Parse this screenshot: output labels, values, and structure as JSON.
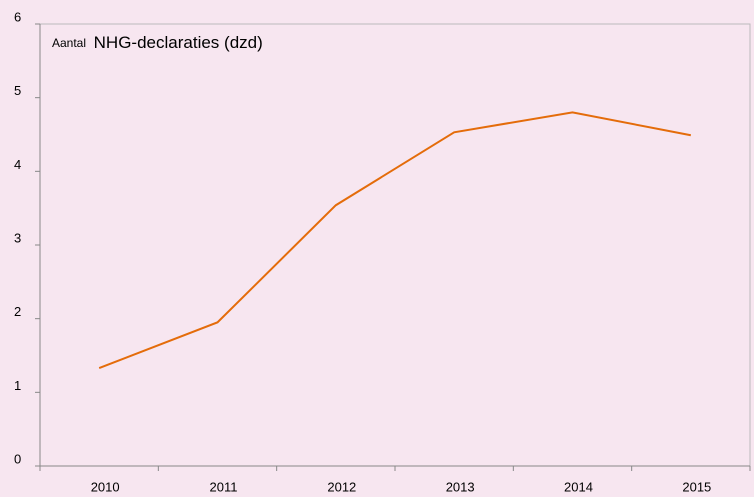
{
  "chart_data": {
    "type": "line",
    "title_parts": [
      "Aantal",
      "NHG-declaraties (dzd)"
    ],
    "categories": [
      "2010",
      "2011",
      "2012",
      "2013",
      "2014",
      "2015"
    ],
    "values": [
      1.33,
      1.95,
      3.54,
      4.53,
      4.8,
      4.49
    ],
    "color": "#e46c0a",
    "ylim": [
      0,
      6
    ],
    "yticks": [
      0,
      1,
      2,
      3,
      4,
      5,
      6
    ],
    "grid": false
  }
}
